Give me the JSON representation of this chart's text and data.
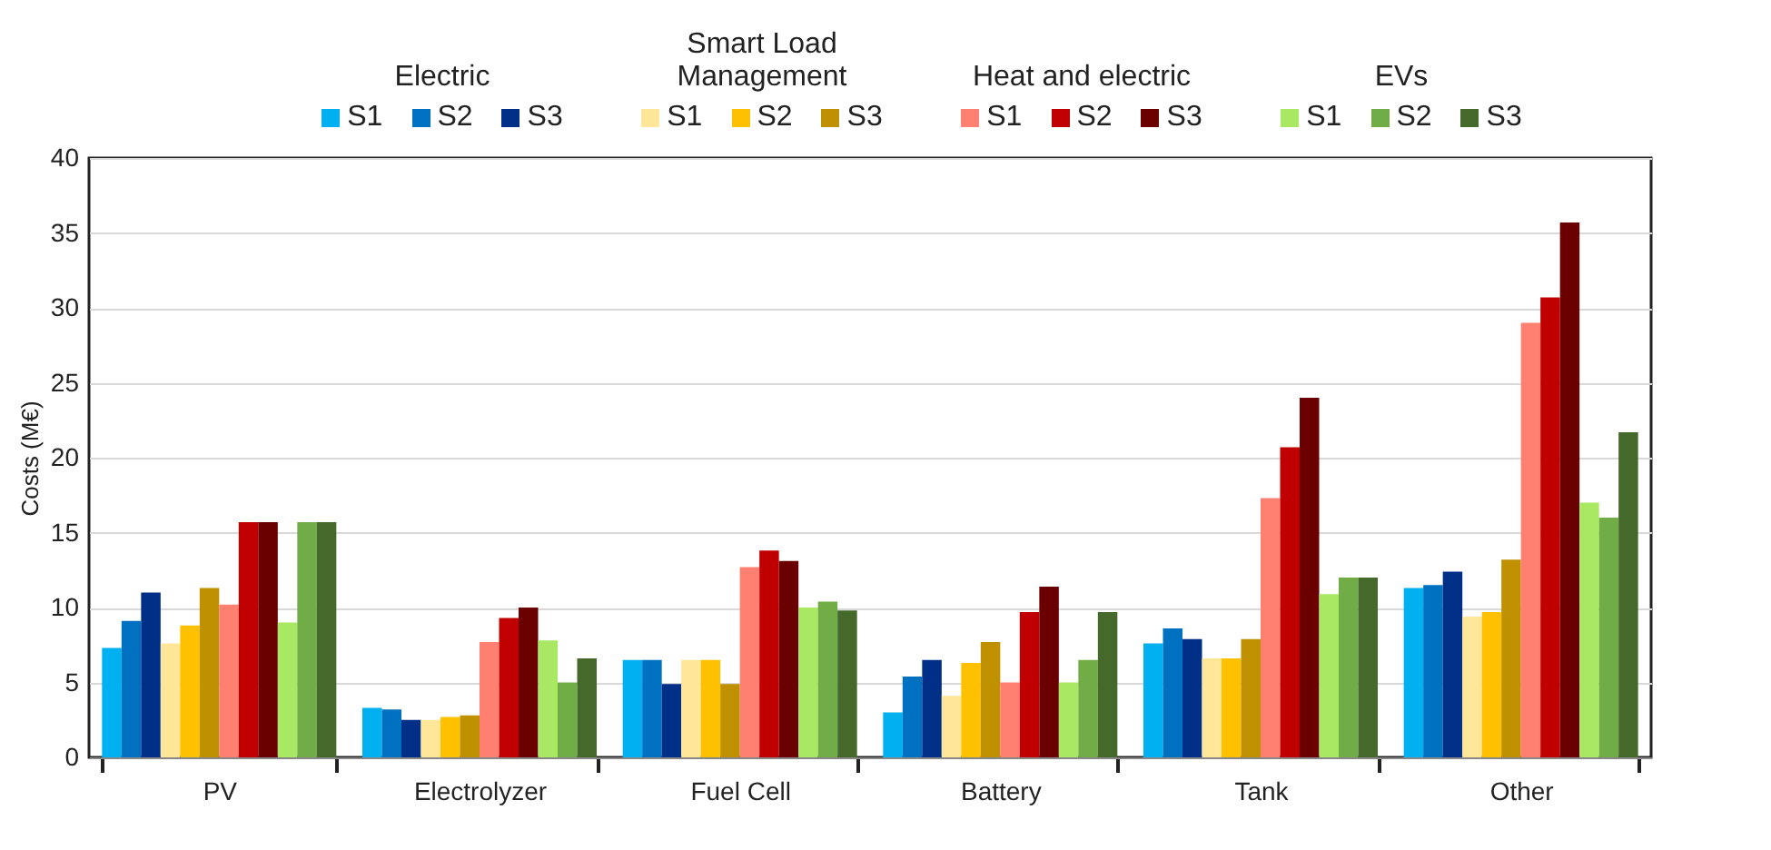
{
  "chart_data": {
    "type": "bar",
    "ylabel": "Costs (M€)",
    "categories": [
      "PV",
      "Electrolyzer",
      "Fuel Cell",
      "Battery",
      "Tank",
      "Other"
    ],
    "ylim": [
      0,
      40
    ],
    "yticks": [
      0,
      5,
      10,
      15,
      20,
      25,
      30,
      35,
      40
    ],
    "grid": "y",
    "legend": "top",
    "annotations": [
      "Electric",
      "Smart Load Management",
      "Heat and electric",
      "EVs"
    ],
    "series": [
      {
        "name": "S1",
        "color": "#00b0f0",
        "values": [
          7.3,
          3.3,
          6.5,
          3.0,
          7.6,
          11.3
        ]
      },
      {
        "name": "S2",
        "color": "#0070c0",
        "values": [
          9.1,
          3.2,
          6.5,
          5.4,
          8.6,
          11.5
        ]
      },
      {
        "name": "S3",
        "color": "#002f87",
        "values": [
          11.0,
          2.5,
          4.9,
          6.5,
          7.9,
          12.4
        ]
      },
      {
        "name": "S1",
        "color": "#ffe699",
        "values": [
          7.6,
          2.5,
          6.5,
          4.1,
          6.6,
          9.4
        ]
      },
      {
        "name": "S2",
        "color": "#ffc000",
        "values": [
          8.8,
          2.7,
          6.5,
          6.3,
          6.6,
          9.7
        ]
      },
      {
        "name": "S3",
        "color": "#bf9000",
        "values": [
          11.3,
          2.8,
          4.9,
          7.7,
          7.9,
          13.2
        ]
      },
      {
        "name": "S1",
        "color": "#ff8070",
        "values": [
          10.2,
          7.7,
          12.7,
          5.0,
          17.3,
          29.0
        ]
      },
      {
        "name": "S2",
        "color": "#c00000",
        "values": [
          15.7,
          9.3,
          13.8,
          9.7,
          20.7,
          30.7
        ]
      },
      {
        "name": "S3",
        "color": "#6b0000",
        "values": [
          15.7,
          10.0,
          13.1,
          11.4,
          24.0,
          35.7
        ]
      },
      {
        "name": "S1",
        "color": "#a9e862",
        "values": [
          9.0,
          7.8,
          10.0,
          5.0,
          10.9,
          17.0
        ]
      },
      {
        "name": "S2",
        "color": "#70ad47",
        "values": [
          15.7,
          5.0,
          10.4,
          6.5,
          12.0,
          16.0
        ]
      },
      {
        "name": "S3",
        "color": "#44692b",
        "values": [
          15.7,
          6.6,
          9.8,
          9.7,
          12.0,
          21.7
        ]
      }
    ]
  }
}
